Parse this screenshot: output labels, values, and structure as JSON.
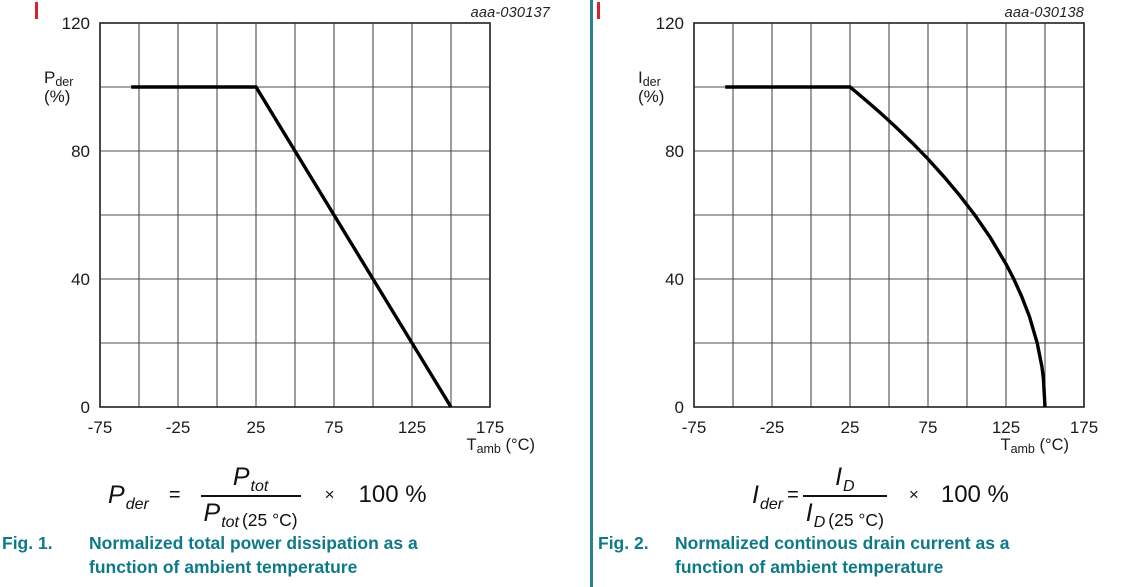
{
  "page": {
    "background": "#ffffff",
    "divider_color": "#2a8191",
    "caption_color": "#0e7989",
    "change_bar_color": "#d8232a",
    "curve_color": "#000000",
    "grid_color": "#4d4d4d",
    "frame_color": "#2e2e2e"
  },
  "figures": [
    {
      "plot_id": "aaa-030137",
      "y_axis": {
        "main": "P",
        "sub": "der",
        "unit": "(%)"
      },
      "x_axis": {
        "main": "T",
        "sub": "amb",
        "unit": "(°C)"
      },
      "formula": {
        "lhs_main": "P",
        "lhs_sub": "der",
        "equals": "=",
        "num_main": "P",
        "num_sub": "tot",
        "den_main": "P",
        "den_sub": "tot",
        "den_cond": "(25 °C)",
        "times": "×",
        "result": "100 %"
      },
      "caption": {
        "label": "Fig. 1.",
        "lines": [
          "Normalized total power dissipation as a",
          "function of ambient temperature"
        ]
      }
    },
    {
      "plot_id": "aaa-030138",
      "y_axis": {
        "main": "I",
        "sub": "der",
        "unit": "(%)"
      },
      "x_axis": {
        "main": "T",
        "sub": "amb",
        "unit": "(°C)"
      },
      "formula": {
        "lhs_main": "I",
        "lhs_sub": "der",
        "equals": "=",
        "num_main": "I",
        "num_sub": "D",
        "den_main": "I",
        "den_sub": "D",
        "den_cond": "(25 °C)",
        "times": "×",
        "result": "100 %"
      },
      "caption": {
        "label": "Fig. 2.",
        "lines": [
          "Normalized continous drain current as a",
          "function of ambient temperature"
        ]
      }
    }
  ],
  "chart_data": [
    {
      "type": "line",
      "plot_id": "aaa-030137",
      "title": "",
      "xlabel": "Tamb (°C)",
      "ylabel": "Pder (%)",
      "xlim": [
        -75,
        175
      ],
      "ylim": [
        0,
        120
      ],
      "xticks": [
        -75,
        -25,
        25,
        75,
        125,
        175
      ],
      "yticks": [
        0,
        40,
        80,
        120
      ],
      "x_grid_step": 25,
      "y_grid_step": 20,
      "grid": true,
      "legend": false,
      "series": [
        {
          "name": "normalized-power-dissipation",
          "points": [
            [
              -55,
              100
            ],
            [
              25,
              100
            ],
            [
              150,
              0
            ]
          ]
        }
      ]
    },
    {
      "type": "line",
      "plot_id": "aaa-030138",
      "title": "",
      "xlabel": "Tamb (°C)",
      "ylabel": "Ider (%)",
      "xlim": [
        -75,
        175
      ],
      "ylim": [
        0,
        120
      ],
      "xticks": [
        -75,
        -25,
        25,
        75,
        125,
        175
      ],
      "yticks": [
        0,
        40,
        80,
        120
      ],
      "x_grid_step": 25,
      "y_grid_step": 20,
      "grid": true,
      "legend": false,
      "series": [
        {
          "name": "normalized-drain-current",
          "points": [
            [
              -55,
              100
            ],
            [
              25,
              100
            ],
            [
              35,
              95.9
            ],
            [
              45,
              91.7
            ],
            [
              55,
              87.2
            ],
            [
              65,
              82.5
            ],
            [
              75,
              77.5
            ],
            [
              85,
              72.1
            ],
            [
              95,
              66.3
            ],
            [
              105,
              60.0
            ],
            [
              115,
              52.9
            ],
            [
              125,
              44.7
            ],
            [
              130,
              40.0
            ],
            [
              135,
              34.6
            ],
            [
              140,
              28.3
            ],
            [
              145,
              20.0
            ],
            [
              148,
              12.6
            ],
            [
              149,
              8.9
            ],
            [
              150,
              0
            ]
          ]
        }
      ]
    }
  ]
}
